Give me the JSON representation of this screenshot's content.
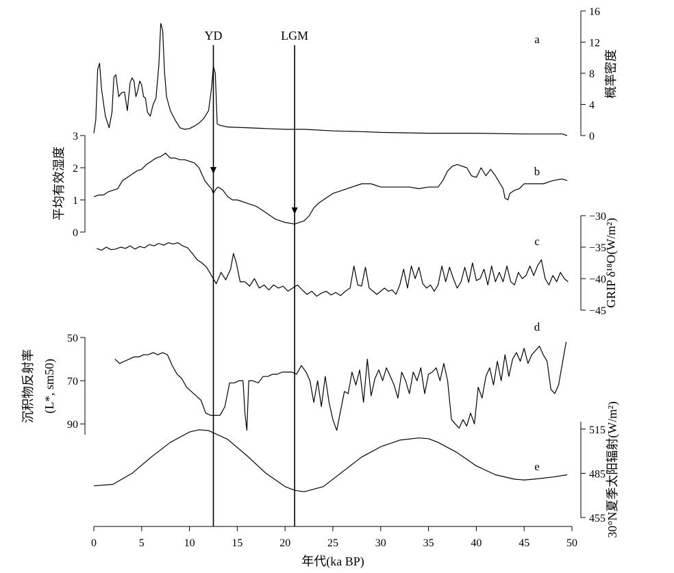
{
  "chart_data": {
    "type": "line",
    "x_axis": {
      "label": "年代(ka BP)",
      "range": [
        0,
        50
      ],
      "ticks": [
        0,
        5,
        10,
        15,
        20,
        25,
        30,
        35,
        40,
        45,
        50
      ]
    },
    "markers": [
      {
        "label": "YD",
        "x": 12.5
      },
      {
        "label": "LGM",
        "x": 21.0
      }
    ],
    "panels": [
      {
        "id": "a",
        "letter": "a",
        "axis_side": "right",
        "label": "概率密度",
        "ylim": [
          0,
          16
        ],
        "ticks": [
          0,
          4,
          8,
          12,
          16
        ],
        "x": [
          0,
          0.2,
          0.4,
          0.6,
          0.8,
          1.2,
          1.6,
          1.9,
          2.1,
          2.3,
          2.6,
          2.9,
          3.2,
          3.5,
          3.8,
          4.0,
          4.2,
          4.4,
          4.6,
          4.8,
          5.0,
          5.2,
          5.4,
          5.6,
          5.9,
          6.2,
          6.5,
          6.8,
          7.0,
          7.2,
          7.4,
          7.6,
          8.0,
          8.5,
          9.0,
          9.5,
          10.0,
          10.5,
          11.0,
          11.5,
          12.0,
          12.3,
          12.5,
          12.7,
          12.9,
          13.2,
          14,
          16,
          18,
          20,
          22,
          25,
          28,
          30,
          35,
          40,
          45,
          49,
          49.5
        ],
        "values": [
          0.3,
          2,
          8.5,
          9.3,
          6,
          2.5,
          1.0,
          3,
          7.5,
          7.8,
          5,
          5.5,
          5.6,
          3.2,
          6.8,
          7.4,
          7.0,
          5.0,
          5.8,
          7.0,
          6.5,
          5.0,
          4.8,
          3.0,
          2.5,
          4.0,
          4.8,
          9.0,
          14.4,
          13.5,
          8.0,
          5.0,
          3.2,
          2.0,
          1.0,
          0.8,
          0.9,
          1.2,
          1.6,
          2.2,
          3.2,
          6.0,
          8.9,
          8.0,
          1.5,
          1.3,
          1.1,
          1.0,
          0.9,
          0.8,
          0.8,
          0.6,
          0.5,
          0.4,
          0.3,
          0.3,
          0.2,
          0.2,
          0.0
        ]
      },
      {
        "id": "b",
        "letter": "b",
        "axis_side": "left",
        "label": "平均有效湿度",
        "ylim": [
          0,
          3
        ],
        "ticks": [
          0,
          1,
          2,
          3
        ],
        "x": [
          0,
          0.5,
          1,
          1.5,
          2,
          2.5,
          3,
          3.5,
          4,
          4.5,
          5,
          5.5,
          6,
          6.5,
          7,
          7.5,
          8,
          8.5,
          9,
          9.5,
          10,
          10.5,
          11,
          11.3,
          11.6,
          12,
          12.3,
          12.5,
          12.8,
          13,
          13.5,
          14,
          14.5,
          15,
          16,
          17,
          18,
          19,
          20,
          21,
          21.5,
          22,
          22.5,
          23,
          23.5,
          24,
          25,
          26,
          27,
          28,
          29,
          30,
          31,
          32,
          33,
          34,
          35,
          36,
          36.5,
          37,
          37.5,
          38,
          38.5,
          39,
          39.5,
          40,
          40.5,
          41,
          41.5,
          42,
          42.5,
          42.8,
          43,
          43.3,
          43.5,
          44,
          44.5,
          45,
          46,
          47,
          48,
          49,
          49.5
        ],
        "values": [
          1.1,
          1.15,
          1.15,
          1.25,
          1.3,
          1.35,
          1.6,
          1.7,
          1.8,
          1.9,
          1.95,
          2.1,
          2.2,
          2.3,
          2.35,
          2.45,
          2.3,
          2.3,
          2.25,
          2.25,
          2.2,
          2.15,
          2.0,
          1.8,
          1.6,
          1.45,
          1.35,
          1.2,
          1.35,
          1.4,
          1.3,
          1.1,
          1.0,
          1.0,
          0.9,
          0.8,
          0.6,
          0.4,
          0.3,
          0.25,
          0.3,
          0.35,
          0.5,
          0.75,
          0.9,
          1.0,
          1.2,
          1.3,
          1.4,
          1.5,
          1.5,
          1.4,
          1.4,
          1.4,
          1.4,
          1.35,
          1.4,
          1.4,
          1.6,
          1.9,
          2.05,
          2.1,
          2.05,
          2.0,
          1.75,
          1.7,
          2.0,
          1.75,
          1.95,
          1.75,
          1.5,
          1.35,
          1.05,
          1.0,
          1.2,
          1.3,
          1.35,
          1.5,
          1.5,
          1.5,
          1.6,
          1.65,
          1.6
        ]
      },
      {
        "id": "c",
        "letter": "c",
        "axis_side": "right",
        "label": "GRIP δ¹⁸O(W/m²)",
        "ylim": [
          -45,
          -30
        ],
        "ticks": [
          -45,
          -40,
          -35,
          -30
        ],
        "x": [
          0.3,
          0.8,
          1.3,
          1.8,
          2.3,
          2.8,
          3.3,
          3.8,
          4.3,
          4.8,
          5.3,
          5.8,
          6.3,
          6.8,
          7.3,
          7.8,
          8.3,
          8.8,
          9.3,
          9.8,
          10.3,
          10.8,
          11.3,
          11.8,
          12.3,
          12.8,
          13.3,
          13.8,
          14.3,
          14.6,
          14.9,
          15.3,
          15.8,
          16.3,
          16.8,
          17.3,
          17.8,
          18.3,
          18.8,
          19.3,
          19.8,
          20.3,
          20.8,
          21.3,
          21.8,
          22.3,
          22.8,
          23.3,
          23.8,
          24.3,
          24.8,
          25.3,
          25.8,
          26.3,
          26.8,
          27.2,
          27.6,
          28.0,
          28.4,
          28.8,
          29.2,
          29.6,
          30.0,
          30.4,
          30.8,
          31.2,
          31.6,
          32.0,
          32.4,
          32.8,
          33.2,
          33.6,
          34.0,
          34.4,
          34.8,
          35.2,
          35.6,
          36.0,
          36.4,
          36.8,
          37.2,
          37.6,
          38.0,
          38.4,
          38.8,
          39.2,
          39.6,
          40.0,
          40.4,
          40.8,
          41.2,
          41.6,
          42.0,
          42.4,
          42.8,
          43.2,
          43.6,
          44.0,
          44.4,
          44.8,
          45.2,
          45.6,
          46.0,
          46.4,
          46.8,
          47.2,
          47.6,
          48.0,
          48.4,
          48.8,
          49.2,
          49.6
        ],
        "values": [
          -35.2,
          -35.5,
          -35.0,
          -35.4,
          -35.3,
          -35.0,
          -35.2,
          -34.8,
          -35.3,
          -34.9,
          -35.1,
          -34.6,
          -34.8,
          -34.4,
          -34.7,
          -34.3,
          -34.5,
          -34.3,
          -34.8,
          -35.1,
          -36.0,
          -37.0,
          -37.5,
          -38.2,
          -39.5,
          -40.8,
          -39.0,
          -40.2,
          -38.5,
          -36.0,
          -37.5,
          -40.5,
          -40.5,
          -41.2,
          -40.0,
          -41.5,
          -41.0,
          -41.8,
          -41.0,
          -41.5,
          -41.2,
          -42.0,
          -41.5,
          -41.0,
          -41.8,
          -42.5,
          -42.0,
          -42.8,
          -42.3,
          -42.0,
          -42.6,
          -42.2,
          -42.7,
          -42.0,
          -41.5,
          -38.0,
          -41.0,
          -41.2,
          -38.2,
          -41.5,
          -42.0,
          -42.5,
          -42.0,
          -41.5,
          -42.0,
          -41.8,
          -42.5,
          -41.0,
          -38.5,
          -41.5,
          -38.0,
          -40.0,
          -38.2,
          -40.8,
          -41.5,
          -41.0,
          -42.0,
          -41.0,
          -38.0,
          -40.5,
          -38.2,
          -40.0,
          -41.5,
          -40.5,
          -38.2,
          -40.6,
          -37.5,
          -40.3,
          -40.0,
          -38.5,
          -41.0,
          -38.0,
          -40.5,
          -39.0,
          -40.5,
          -38.0,
          -40.5,
          -41.0,
          -39.0,
          -40.0,
          -39.5,
          -38.0,
          -39.5,
          -38.0,
          -37.0,
          -40.0,
          -41.0,
          -39.5,
          -40.5,
          -39.0,
          -40.0,
          -40.5
        ]
      },
      {
        "id": "d",
        "letter": "d",
        "axis_side": "left",
        "label": "沉积物反射率",
        "label2": "(L*, sm50)",
        "ylim": [
          95,
          50
        ],
        "ticks": [
          50,
          70,
          90
        ],
        "x": [
          2.2,
          2.7,
          3.2,
          3.7,
          4.2,
          4.7,
          5.2,
          5.7,
          6.2,
          6.7,
          7.2,
          7.7,
          8.2,
          8.7,
          9.2,
          9.7,
          10.2,
          10.7,
          11.2,
          11.7,
          12.2,
          12.7,
          13.2,
          13.7,
          14.2,
          14.7,
          15.2,
          15.6,
          15.8,
          16.0,
          16.2,
          16.6,
          17.2,
          17.7,
          18.2,
          18.7,
          19.2,
          19.7,
          20.2,
          20.7,
          21.2,
          21.7,
          22.2,
          22.6,
          23.0,
          23.4,
          23.8,
          24.2,
          24.6,
          25.0,
          25.4,
          25.8,
          26.2,
          26.6,
          27.0,
          27.4,
          27.8,
          28.2,
          28.6,
          29.0,
          29.4,
          29.8,
          30.2,
          30.6,
          31.0,
          31.4,
          31.8,
          32.2,
          32.6,
          33.0,
          33.4,
          33.8,
          34.2,
          34.6,
          35.0,
          35.4,
          35.8,
          36.2,
          36.6,
          37.0,
          37.4,
          37.8,
          38.2,
          38.6,
          39.0,
          39.4,
          39.8,
          40.2,
          40.6,
          41.0,
          41.4,
          41.8,
          42.2,
          42.6,
          43.0,
          43.4,
          43.8,
          44.2,
          44.6,
          45.0,
          45.4,
          45.8,
          46.2,
          46.6,
          47.0,
          47.4,
          47.8,
          48.2,
          48.6,
          49.0,
          49.4
        ],
        "values": [
          60,
          62,
          61,
          60,
          59,
          59,
          58,
          58,
          57,
          58,
          57,
          58,
          63,
          67,
          69,
          73,
          75,
          77,
          79,
          85,
          86,
          86,
          86,
          82,
          71,
          71,
          70,
          70,
          85,
          93,
          70,
          70,
          71,
          68,
          68,
          67,
          67,
          66,
          66,
          66,
          67,
          63,
          66,
          70,
          80,
          70,
          82,
          68,
          80,
          88,
          93,
          84,
          75,
          76,
          66,
          72,
          65,
          80,
          60,
          77,
          69,
          65,
          70,
          64,
          68,
          72,
          78,
          66,
          70,
          76,
          66,
          70,
          64,
          76,
          67,
          66,
          64,
          70,
          62,
          70,
          88,
          90,
          92,
          88,
          91,
          85,
          90,
          73,
          78,
          68,
          64,
          72,
          61,
          70,
          58,
          68,
          60,
          57,
          61,
          55,
          62,
          58,
          56,
          54,
          58,
          61,
          74,
          76,
          72,
          62,
          52
        ]
      },
      {
        "id": "e",
        "letter": "e",
        "axis_side": "right",
        "label": "30°N夏季太阳辐射(W/m²)",
        "ylim": [
          455,
          520
        ],
        "ticks": [
          455,
          485,
          515
        ],
        "x": [
          0,
          2,
          4,
          6,
          8,
          10,
          11,
          12,
          14,
          16,
          18,
          20,
          21,
          22,
          24,
          26,
          28,
          30,
          32,
          34,
          35,
          36,
          38,
          40,
          42,
          44,
          45,
          46,
          48,
          49.5
        ],
        "values": [
          476.5,
          477.5,
          485,
          496,
          506,
          513,
          514.5,
          514,
          508,
          497,
          485,
          476,
          473.5,
          472.5,
          476,
          486,
          496,
          503,
          507.5,
          509,
          508.5,
          506,
          499,
          490,
          484,
          481,
          480.5,
          481,
          482.5,
          484
        ]
      }
    ]
  }
}
